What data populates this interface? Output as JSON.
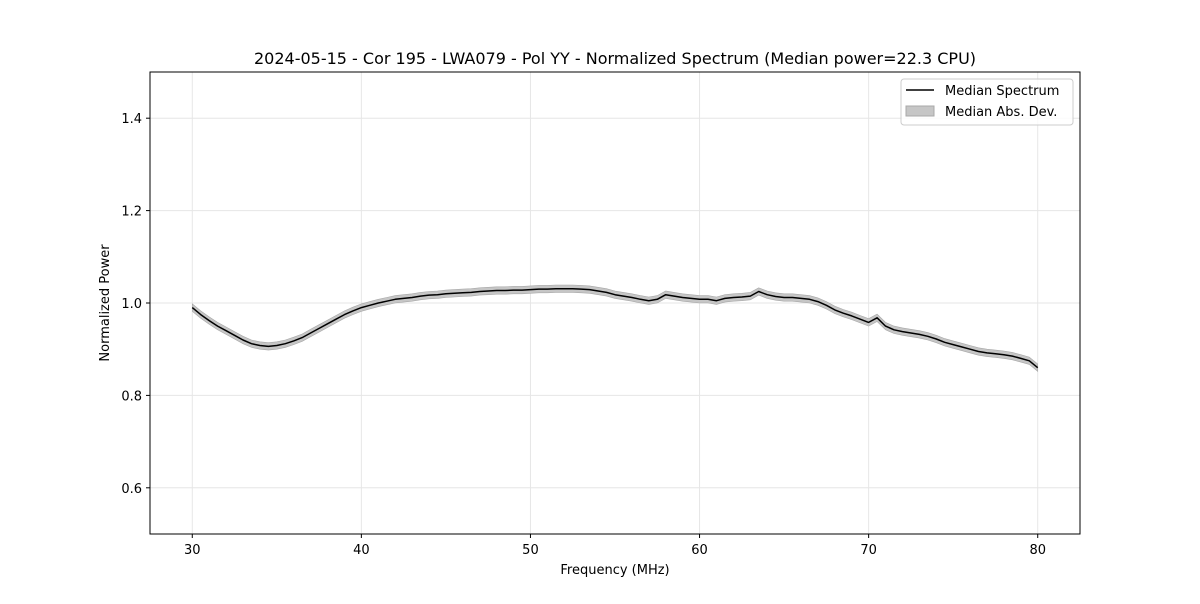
{
  "chart_data": {
    "type": "line",
    "title": "2024-05-15 - Cor 195 - LWA079 - Pol YY - Normalized Spectrum (Median power=22.3 CPU)",
    "xlabel": "Frequency (MHz)",
    "ylabel": "Normalized Power",
    "xlim": [
      27.5,
      82.5
    ],
    "ylim": [
      0.5,
      1.5
    ],
    "xticks": [
      30,
      40,
      50,
      60,
      70,
      80
    ],
    "yticks": [
      0.6,
      0.8,
      1.0,
      1.2,
      1.4
    ],
    "xtick_labels": [
      "30",
      "40",
      "50",
      "60",
      "70",
      "80"
    ],
    "ytick_labels": [
      "0.6",
      "0.8",
      "1.0",
      "1.2",
      "1.4"
    ],
    "grid": true,
    "legend_position": "top-right",
    "series": [
      {
        "name": "Median Spectrum",
        "kind": "line",
        "color": "#000000",
        "x": [
          30,
          30.5,
          31,
          31.5,
          32,
          32.5,
          33,
          33.5,
          34,
          34.5,
          35,
          35.5,
          36,
          36.5,
          37,
          37.5,
          38,
          38.5,
          39,
          39.5,
          40,
          40.5,
          41,
          41.5,
          42,
          42.5,
          43,
          43.5,
          44,
          44.5,
          45,
          45.5,
          46,
          46.5,
          47,
          47.5,
          48,
          48.5,
          49,
          49.5,
          50,
          50.5,
          51,
          51.5,
          52,
          52.5,
          53,
          53.5,
          54,
          54.5,
          55,
          55.5,
          56,
          56.5,
          57,
          57.5,
          58,
          58.5,
          59,
          59.5,
          60,
          60.5,
          61,
          61.5,
          62,
          62.5,
          63,
          63.5,
          64,
          64.5,
          65,
          65.5,
          66,
          66.5,
          67,
          67.5,
          68,
          68.5,
          69,
          69.5,
          70,
          70.5,
          71,
          71.5,
          72,
          72.5,
          73,
          73.5,
          74,
          74.5,
          75,
          75.5,
          76,
          76.5,
          77,
          77.5,
          78,
          78.5,
          79,
          79.5,
          80
        ],
        "y": [
          0.99,
          0.975,
          0.962,
          0.95,
          0.94,
          0.93,
          0.92,
          0.912,
          0.908,
          0.906,
          0.908,
          0.912,
          0.918,
          0.925,
          0.935,
          0.945,
          0.955,
          0.965,
          0.975,
          0.983,
          0.99,
          0.995,
          1.0,
          1.004,
          1.008,
          1.01,
          1.012,
          1.015,
          1.017,
          1.018,
          1.02,
          1.021,
          1.022,
          1.023,
          1.025,
          1.026,
          1.027,
          1.027,
          1.028,
          1.028,
          1.029,
          1.03,
          1.03,
          1.031,
          1.031,
          1.031,
          1.03,
          1.029,
          1.026,
          1.023,
          1.018,
          1.015,
          1.012,
          1.008,
          1.005,
          1.008,
          1.018,
          1.015,
          1.012,
          1.01,
          1.008,
          1.008,
          1.005,
          1.01,
          1.012,
          1.013,
          1.015,
          1.025,
          1.018,
          1.014,
          1.012,
          1.012,
          1.01,
          1.008,
          1.003,
          0.995,
          0.985,
          0.978,
          0.972,
          0.965,
          0.958,
          0.968,
          0.95,
          0.942,
          0.938,
          0.935,
          0.932,
          0.928,
          0.922,
          0.915,
          0.91,
          0.905,
          0.9,
          0.895,
          0.892,
          0.89,
          0.888,
          0.885,
          0.88,
          0.875,
          0.86
        ]
      },
      {
        "name": "Median Abs. Dev.",
        "kind": "band",
        "color": "#c6c6c6",
        "edge_color": "#a8a8a8",
        "half_width": 0.008
      }
    ]
  }
}
